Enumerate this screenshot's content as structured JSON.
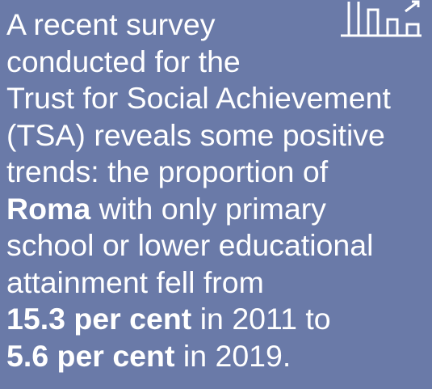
{
  "text": {
    "lines": [
      [
        {
          "text": "A recent survey",
          "bold": false
        }
      ],
      [
        {
          "text": "conducted for the",
          "bold": false
        }
      ],
      [
        {
          "text": "Trust for Social Achievement",
          "bold": false
        }
      ],
      [
        {
          "text": "(TSA) reveals some positive",
          "bold": false
        }
      ],
      [
        {
          "text": "trends: the proportion of",
          "bold": false
        }
      ],
      [
        {
          "text": "Roma",
          "bold": true
        },
        {
          "text": " with only primary",
          "bold": false
        }
      ],
      [
        {
          "text": "school or lower educational",
          "bold": false
        }
      ],
      [
        {
          "text": "attainment fell from",
          "bold": false
        }
      ],
      [
        {
          "text": "15.3 per cent",
          "bold": true
        },
        {
          "text": " in 2011 to",
          "bold": false
        }
      ],
      [
        {
          "text": "5.6 per cent",
          "bold": true
        },
        {
          "text": " in 2019.",
          "bold": false
        }
      ]
    ]
  }
}
